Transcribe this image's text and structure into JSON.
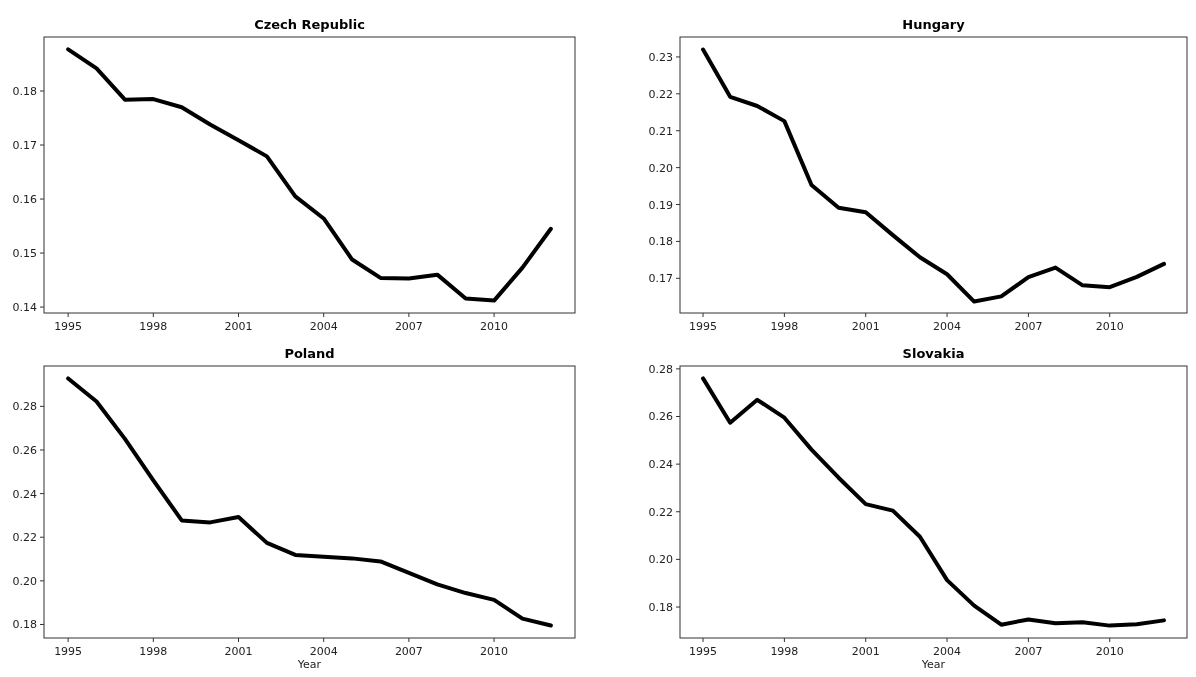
{
  "chart_data": [
    {
      "type": "line",
      "title": "Czech Republic",
      "x": [
        1995,
        1996,
        1997,
        1998,
        1999,
        2000,
        2001,
        2002,
        2003,
        2004,
        2005,
        2006,
        2007,
        2008,
        2009,
        2010,
        2011,
        2012
      ],
      "series": [
        {
          "color": "#000000",
          "values": [
            0.1877,
            0.1842,
            0.1784,
            0.1785,
            0.177,
            0.1738,
            0.1709,
            0.1679,
            0.1605,
            0.1564,
            0.1488,
            0.1454,
            0.1453,
            0.146,
            0.1416,
            0.1412,
            0.1473,
            0.1545
          ]
        }
      ],
      "xlim": [
        1994.15,
        2012.85
      ],
      "xticks": [
        1995,
        1998,
        2001,
        2004,
        2007,
        2010
      ],
      "ylim": [
        0.1389,
        0.19
      ],
      "yticks": [
        {
          "value": 0.14,
          "label": "0.14"
        },
        {
          "value": 0.15,
          "label": "0.15"
        },
        {
          "value": 0.16,
          "label": "0.16"
        },
        {
          "value": 0.17,
          "label": "0.17"
        },
        {
          "value": 0.18,
          "label": "0.18"
        }
      ]
    },
    {
      "type": "line",
      "title": "Hungary",
      "x": [
        1995,
        1996,
        1997,
        1998,
        1999,
        2000,
        2001,
        2002,
        2003,
        2004,
        2005,
        2006,
        2007,
        2008,
        2009,
        2010,
        2011,
        2012
      ],
      "series": [
        {
          "color": "#000000",
          "values": [
            0.232,
            0.2192,
            0.2167,
            0.2126,
            0.1953,
            0.1891,
            0.1879,
            0.1817,
            0.1757,
            0.1711,
            0.1637,
            0.1651,
            0.1703,
            0.1729,
            0.1681,
            0.1676,
            0.1704,
            0.1739
          ]
        }
      ],
      "xlim": [
        1994.15,
        2012.85
      ],
      "xticks": [
        1995,
        1998,
        2001,
        2004,
        2007,
        2010
      ],
      "ylim": [
        0.1606,
        0.2354
      ],
      "yticks": [
        {
          "value": 0.17,
          "label": "0.17"
        },
        {
          "value": 0.18,
          "label": "0.18"
        },
        {
          "value": 0.19,
          "label": "0.19"
        },
        {
          "value": 0.2,
          "label": "0.20"
        },
        {
          "value": 0.21,
          "label": "0.21"
        },
        {
          "value": 0.22,
          "label": "0.22"
        },
        {
          "value": 0.23,
          "label": "0.23"
        }
      ]
    },
    {
      "type": "line",
      "title": "Poland",
      "xlabel": "Year",
      "x": [
        1995,
        1996,
        1997,
        1998,
        1999,
        2000,
        2001,
        2002,
        2003,
        2004,
        2005,
        2006,
        2007,
        2008,
        2009,
        2010,
        2011,
        2012
      ],
      "series": [
        {
          "color": "#000000",
          "values": [
            0.2928,
            0.2822,
            0.2651,
            0.2461,
            0.2277,
            0.2268,
            0.2293,
            0.2174,
            0.2119,
            0.2111,
            0.2103,
            0.2089,
            0.2037,
            0.1984,
            0.1944,
            0.1913,
            0.1827,
            0.1795
          ]
        }
      ],
      "xlim": [
        1994.15,
        2012.85
      ],
      "xticks": [
        1995,
        1998,
        2001,
        2004,
        2007,
        2010
      ],
      "ylim": [
        0.1738,
        0.2985
      ],
      "yticks": [
        {
          "value": 0.18,
          "label": "0.18"
        },
        {
          "value": 0.2,
          "label": "0.20"
        },
        {
          "value": 0.22,
          "label": "0.22"
        },
        {
          "value": 0.24,
          "label": "0.24"
        },
        {
          "value": 0.26,
          "label": "0.26"
        },
        {
          "value": 0.28,
          "label": "0.28"
        }
      ]
    },
    {
      "type": "line",
      "title": "Slovakia",
      "xlabel": "Year",
      "x": [
        1995,
        1996,
        1997,
        1998,
        1999,
        2000,
        2001,
        2002,
        2003,
        2004,
        2005,
        2006,
        2007,
        2008,
        2009,
        2010,
        2011,
        2012
      ],
      "series": [
        {
          "color": "#000000",
          "values": [
            0.276,
            0.2574,
            0.267,
            0.2595,
            0.2461,
            0.2343,
            0.2232,
            0.2205,
            0.2095,
            0.1913,
            0.1806,
            0.1726,
            0.1748,
            0.1732,
            0.1736,
            0.1722,
            0.1728,
            0.1744
          ]
        }
      ],
      "xlim": [
        1994.15,
        2012.85
      ],
      "xticks": [
        1995,
        1998,
        2001,
        2004,
        2007,
        2010
      ],
      "ylim": [
        0.167,
        0.2812
      ],
      "yticks": [
        {
          "value": 0.18,
          "label": "0.18"
        },
        {
          "value": 0.2,
          "label": "0.20"
        },
        {
          "value": 0.22,
          "label": "0.22"
        },
        {
          "value": 0.24,
          "label": "0.24"
        },
        {
          "value": 0.26,
          "label": "0.26"
        },
        {
          "value": 0.28,
          "label": "0.28"
        }
      ]
    }
  ]
}
